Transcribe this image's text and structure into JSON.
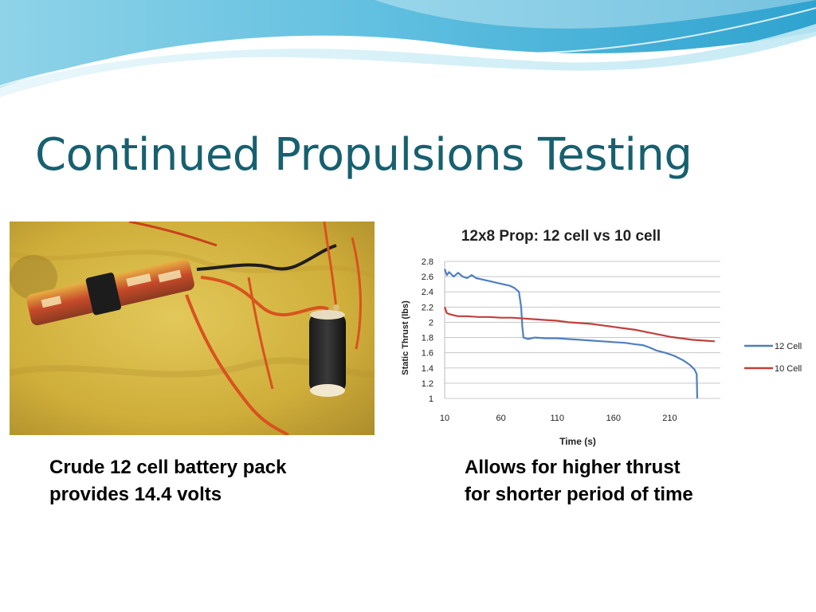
{
  "slide": {
    "title": "Continued Propulsions Testing",
    "captions": {
      "left": [
        "Crude 12 cell battery pack",
        "provides 14.4 volts"
      ],
      "right": [
        "Allows for higher thrust",
        "for shorter period of time"
      ]
    },
    "photo_icon": "battery-pack-photo"
  },
  "colors": {
    "title": "#17606f",
    "series_12": "#4f7fbf",
    "series_10": "#c0403c",
    "wave_light": "#bfe6f0",
    "wave_dark": "#2f9cc4"
  },
  "chart_data": {
    "type": "line",
    "title": "12x8 Prop: 12 cell vs 10 cell",
    "xlabel": "Time (s)",
    "ylabel": "Static Thrust (lbs)",
    "xlim": [
      10,
      255
    ],
    "ylim": [
      1,
      2.8
    ],
    "xticks": [
      10,
      60,
      110,
      160,
      210
    ],
    "yticks": [
      1,
      1.2,
      1.4,
      1.6,
      1.8,
      2,
      2.2,
      2.4,
      2.6,
      2.8
    ],
    "grid": true,
    "legend": "right",
    "series": [
      {
        "name": "12 Cell",
        "points": [
          [
            10,
            2.7
          ],
          [
            12,
            2.62
          ],
          [
            14,
            2.66
          ],
          [
            18,
            2.6
          ],
          [
            22,
            2.65
          ],
          [
            26,
            2.6
          ],
          [
            30,
            2.58
          ],
          [
            34,
            2.62
          ],
          [
            38,
            2.58
          ],
          [
            44,
            2.56
          ],
          [
            50,
            2.54
          ],
          [
            56,
            2.52
          ],
          [
            62,
            2.5
          ],
          [
            68,
            2.48
          ],
          [
            72,
            2.45
          ],
          [
            76,
            2.4
          ],
          [
            78,
            2.2
          ],
          [
            79,
            1.95
          ],
          [
            80,
            1.8
          ],
          [
            84,
            1.78
          ],
          [
            90,
            1.8
          ],
          [
            100,
            1.79
          ],
          [
            110,
            1.79
          ],
          [
            120,
            1.78
          ],
          [
            130,
            1.77
          ],
          [
            140,
            1.76
          ],
          [
            150,
            1.75
          ],
          [
            160,
            1.74
          ],
          [
            170,
            1.73
          ],
          [
            180,
            1.71
          ],
          [
            186,
            1.7
          ],
          [
            192,
            1.67
          ],
          [
            198,
            1.63
          ],
          [
            206,
            1.6
          ],
          [
            214,
            1.56
          ],
          [
            222,
            1.5
          ],
          [
            228,
            1.44
          ],
          [
            232,
            1.38
          ],
          [
            234,
            1.32
          ],
          [
            234.5,
            1
          ]
        ]
      },
      {
        "name": "10 Cell",
        "points": [
          [
            10,
            2.2
          ],
          [
            12,
            2.12
          ],
          [
            16,
            2.1
          ],
          [
            22,
            2.08
          ],
          [
            30,
            2.08
          ],
          [
            40,
            2.07
          ],
          [
            50,
            2.07
          ],
          [
            60,
            2.06
          ],
          [
            70,
            2.06
          ],
          [
            80,
            2.05
          ],
          [
            90,
            2.04
          ],
          [
            100,
            2.03
          ],
          [
            110,
            2.02
          ],
          [
            120,
            2.0
          ],
          [
            130,
            1.99
          ],
          [
            140,
            1.98
          ],
          [
            150,
            1.96
          ],
          [
            160,
            1.94
          ],
          [
            170,
            1.92
          ],
          [
            180,
            1.9
          ],
          [
            190,
            1.87
          ],
          [
            200,
            1.84
          ],
          [
            210,
            1.81
          ],
          [
            220,
            1.79
          ],
          [
            230,
            1.77
          ],
          [
            240,
            1.76
          ],
          [
            250,
            1.75
          ]
        ]
      }
    ]
  }
}
